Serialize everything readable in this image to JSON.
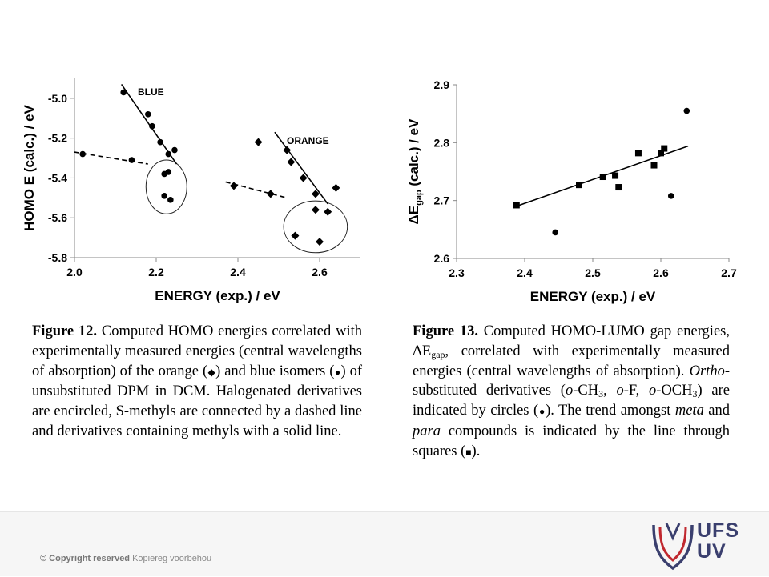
{
  "chart_data": [
    {
      "type": "scatter",
      "xlabel": "ENERGY (exp.) / eV",
      "ylabel": "HOMO E (calc.) / eV",
      "xlim": [
        2.0,
        2.7
      ],
      "ylim": [
        -5.8,
        -4.9
      ],
      "xticks": [
        "2.0",
        "2.2",
        "2.4",
        "2.6"
      ],
      "yticks": [
        "-5.0",
        "-5.2",
        "-5.4",
        "-5.6",
        "-5.8"
      ],
      "annotations": [
        "BLUE",
        "ORANGE"
      ],
      "series": [
        {
          "name": "blue isomers",
          "marker": "circle",
          "points": [
            [
              2.12,
              -4.97
            ],
            [
              2.18,
              -5.08
            ],
            [
              2.19,
              -5.14
            ],
            [
              2.21,
              -5.22
            ],
            [
              2.23,
              -5.28
            ],
            [
              2.245,
              -5.26
            ],
            [
              2.14,
              -5.31
            ],
            [
              2.02,
              -5.28
            ],
            [
              2.22,
              -5.38
            ],
            [
              2.23,
              -5.37
            ],
            [
              2.22,
              -5.49
            ],
            [
              2.235,
              -5.51
            ]
          ]
        },
        {
          "name": "orange isomers",
          "marker": "diamond",
          "points": [
            [
              2.45,
              -5.22
            ],
            [
              2.52,
              -5.26
            ],
            [
              2.53,
              -5.32
            ],
            [
              2.56,
              -5.4
            ],
            [
              2.59,
              -5.48
            ],
            [
              2.64,
              -5.45
            ],
            [
              2.39,
              -5.44
            ],
            [
              2.48,
              -5.48
            ],
            [
              2.59,
              -5.56
            ],
            [
              2.62,
              -5.57
            ],
            [
              2.54,
              -5.69
            ],
            [
              2.6,
              -5.72
            ]
          ]
        }
      ],
      "lines": [
        {
          "style": "solid",
          "from": [
            2.115,
            -4.93
          ],
          "to": [
            2.25,
            -5.33
          ]
        },
        {
          "style": "solid",
          "from": [
            2.49,
            -5.17
          ],
          "to": [
            2.62,
            -5.53
          ]
        },
        {
          "style": "dashed",
          "from": [
            2.0,
            -5.27
          ],
          "to": [
            2.18,
            -5.33
          ]
        },
        {
          "style": "dashed",
          "from": [
            2.37,
            -5.42
          ],
          "to": [
            2.52,
            -5.5
          ]
        }
      ],
      "ellipses": [
        {
          "center": [
            2.225,
            -5.445
          ],
          "rx": 0.05,
          "ry": 0.135
        },
        {
          "center": [
            2.59,
            -5.645
          ],
          "rx": 0.078,
          "ry": 0.13
        }
      ]
    },
    {
      "type": "scatter",
      "xlabel": "ENERGY (exp.) / eV",
      "ylabel_prefix": "ΔE",
      "ylabel_sub": "gap",
      "ylabel_suffix": " (calc.) / eV",
      "xlim": [
        2.3,
        2.7
      ],
      "ylim": [
        2.6,
        2.9
      ],
      "xticks": [
        "2.3",
        "2.4",
        "2.5",
        "2.6",
        "2.7"
      ],
      "yticks": [
        "2.6",
        "2.7",
        "2.8",
        "2.9"
      ],
      "series": [
        {
          "name": "meta and para compounds",
          "marker": "square",
          "points": [
            [
              2.388,
              2.692
            ],
            [
              2.48,
              2.727
            ],
            [
              2.515,
              2.741
            ],
            [
              2.533,
              2.743
            ],
            [
              2.538,
              2.723
            ],
            [
              2.567,
              2.782
            ],
            [
              2.59,
              2.761
            ],
            [
              2.6,
              2.782
            ],
            [
              2.605,
              2.79
            ]
          ]
        },
        {
          "name": "ortho-substituted derivatives",
          "marker": "circle",
          "points": [
            [
              2.445,
              2.645
            ],
            [
              2.615,
              2.708
            ],
            [
              2.638,
              2.855
            ]
          ]
        }
      ],
      "lines": [
        {
          "style": "solid",
          "from": [
            2.385,
            2.689
          ],
          "to": [
            2.64,
            2.794
          ]
        }
      ]
    }
  ],
  "captions": {
    "fig12": {
      "label": "Figure 12.",
      "t1": " Computed HOMO energies correlated with experimentally measured energies (central wavelengths of absorption) of the orange (",
      "diamond": "◆",
      "t2": ") and blue isomers (",
      "circle": "●",
      "t3": ") of unsubstituted DPM in DCM. Halogenated derivatives are encircled, S-methyls are connected by a dashed line and derivatives containing methyls with a solid line."
    },
    "fig13": {
      "label": "Figure 13.",
      "t1": " Computed HOMO-LUMO gap energies, ΔE",
      "sub1": "gap",
      "t2": ", correlated with experimentally measured energies (central wavelengths of absorption). ",
      "ortho": "Ortho",
      "t3": "-substituted derivatives (",
      "o1": "o",
      "t4": "-CH",
      "sub2": "3",
      "t5": ", ",
      "o2": "o",
      "t6": "-F, ",
      "o3": "o",
      "t7": "-OCH",
      "sub3": "3",
      "t8": ") are indicated by circles (",
      "circle": "●",
      "t9": "). The trend amongst ",
      "meta": "meta",
      "t10": " and ",
      "para": "para",
      "t11": " compounds is indicated by the line through squares (",
      "square": "■",
      "t12": ")."
    }
  },
  "footer": {
    "copyright_bold": "© Copyright reserved",
    "copyright_rest": " Kopiereg voorbehou",
    "logo_line1": "UFS",
    "logo_line2": "UV",
    "logo_primary": "#3a3f6e",
    "logo_accent": "#c0282f"
  }
}
